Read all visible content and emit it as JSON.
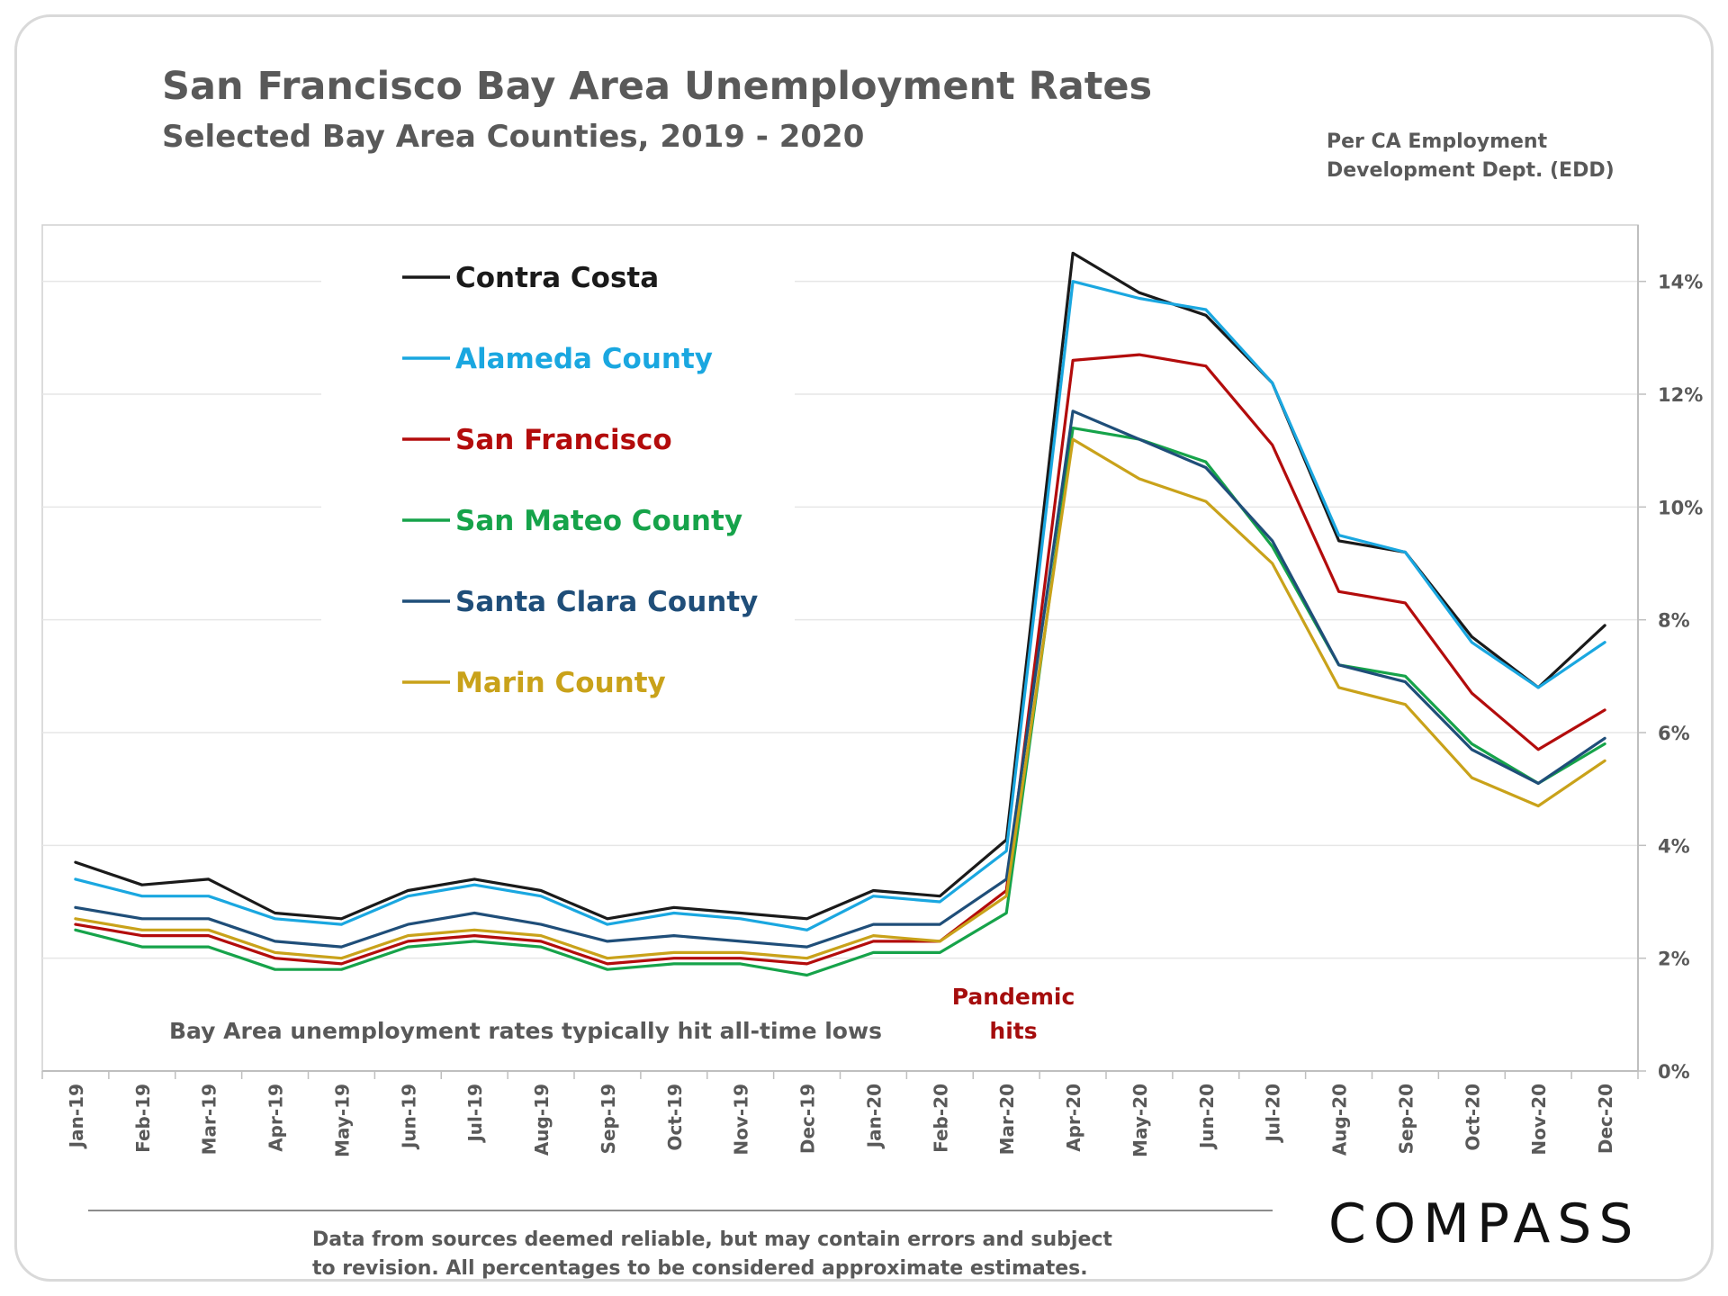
{
  "title": "San Francisco Bay Area Unemployment Rates",
  "subtitle": "Selected Bay Area Counties, 2019 - 2020",
  "source_line1": "Per CA Employment",
  "source_line2": "Development Dept. (EDD)",
  "annotation_lows": "Bay Area unemployment rates typically hit all-time lows",
  "annotation_pandemic_line1": "Pandemic",
  "annotation_pandemic_line2": "hits",
  "disclaimer_line1": "Data from sources deemed reliable, but may contain errors and subject",
  "disclaimer_line2": "to revision. All percentages to be considered approximate estimates.",
  "logo_text": "COMPASS",
  "colors": {
    "text": "#595959",
    "pandemic": "#a50d0d",
    "grid": "#e6e6e6",
    "axis": "#bfbfbf"
  },
  "chart_data": {
    "type": "line",
    "title": "San Francisco Bay Area Unemployment Rates",
    "subtitle": "Selected Bay Area Counties, 2019 - 2020",
    "xlabel": "",
    "ylabel": "",
    "y_axis_side": "right",
    "ylim": [
      0,
      15
    ],
    "yticks": [
      0,
      2,
      4,
      6,
      8,
      10,
      12,
      14
    ],
    "ytick_labels": [
      "0%",
      "2%",
      "4%",
      "6%",
      "8%",
      "10%",
      "12%",
      "14%"
    ],
    "grid": true,
    "legend_position": "top-left",
    "categories": [
      "Jan-19",
      "Feb-19",
      "Mar-19",
      "Apr-19",
      "May-19",
      "Jun-19",
      "Jul-19",
      "Aug-19",
      "Sep-19",
      "Oct-19",
      "Nov-19",
      "Dec-19",
      "Jan-20",
      "Feb-20",
      "Mar-20",
      "Apr-20",
      "May-20",
      "Jun-20",
      "Jul-20",
      "Aug-20",
      "Sep-20",
      "Oct-20",
      "Nov-20",
      "Dec-20"
    ],
    "series": [
      {
        "name": "Contra Costa",
        "color": "#1a1a1a",
        "values": [
          3.7,
          3.3,
          3.4,
          2.8,
          2.7,
          3.2,
          3.4,
          3.2,
          2.7,
          2.9,
          2.8,
          2.7,
          3.2,
          3.1,
          4.1,
          14.5,
          13.8,
          13.4,
          12.2,
          9.4,
          9.2,
          7.7,
          6.8,
          7.9
        ]
      },
      {
        "name": "Alameda County",
        "color": "#1aa7e0",
        "values": [
          3.4,
          3.1,
          3.1,
          2.7,
          2.6,
          3.1,
          3.3,
          3.1,
          2.6,
          2.8,
          2.7,
          2.5,
          3.1,
          3.0,
          3.9,
          14.0,
          13.7,
          13.5,
          12.2,
          9.5,
          9.2,
          7.6,
          6.8,
          7.6
        ]
      },
      {
        "name": "San Francisco",
        "color": "#b30c0c",
        "values": [
          2.6,
          2.4,
          2.4,
          2.0,
          1.9,
          2.3,
          2.4,
          2.3,
          1.9,
          2.0,
          2.0,
          1.9,
          2.3,
          2.3,
          3.2,
          12.6,
          12.7,
          12.5,
          11.1,
          8.5,
          8.3,
          6.7,
          5.7,
          6.4
        ]
      },
      {
        "name": "San Mateo County",
        "color": "#16a34a",
        "values": [
          2.5,
          2.2,
          2.2,
          1.8,
          1.8,
          2.2,
          2.3,
          2.2,
          1.8,
          1.9,
          1.9,
          1.7,
          2.1,
          2.1,
          2.8,
          11.4,
          11.2,
          10.8,
          9.3,
          7.2,
          7.0,
          5.8,
          5.1,
          5.8
        ]
      },
      {
        "name": "Santa Clara County",
        "color": "#1f4e79",
        "values": [
          2.9,
          2.7,
          2.7,
          2.3,
          2.2,
          2.6,
          2.8,
          2.6,
          2.3,
          2.4,
          2.3,
          2.2,
          2.6,
          2.6,
          3.4,
          11.7,
          11.2,
          10.7,
          9.4,
          7.2,
          6.9,
          5.7,
          5.1,
          5.9
        ]
      },
      {
        "name": "Marin County",
        "color": "#c9a21a",
        "values": [
          2.7,
          2.5,
          2.5,
          2.1,
          2.0,
          2.4,
          2.5,
          2.4,
          2.0,
          2.1,
          2.1,
          2.0,
          2.4,
          2.3,
          3.1,
          11.2,
          10.5,
          10.1,
          9.0,
          6.8,
          6.5,
          5.2,
          4.7,
          5.5
        ]
      }
    ]
  }
}
